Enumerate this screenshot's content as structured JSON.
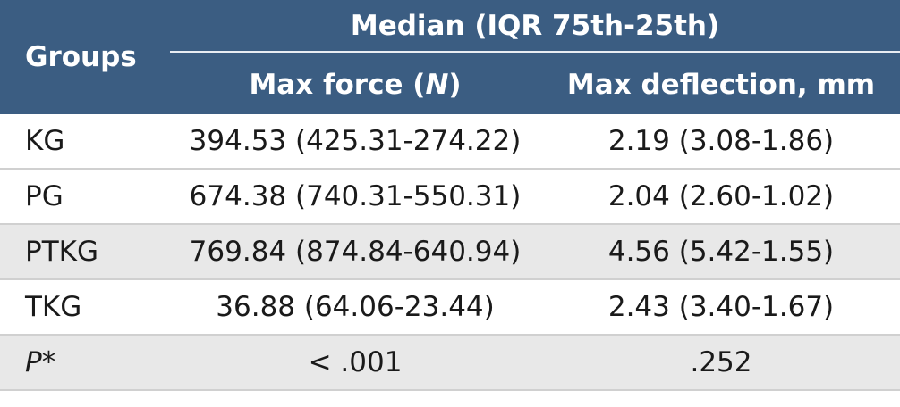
{
  "header": {
    "groups_label": "Groups",
    "median_label": "Median (IQR 75th-25th)",
    "max_force_prefix": "Max force (",
    "max_force_unit": "N",
    "max_force_suffix": ")",
    "max_deflection_label": "Max deflection, mm"
  },
  "rows": [
    {
      "group": "KG",
      "max_force": "394.53 (425.31-274.22)",
      "max_deflection": "2.19 (3.08-1.86)"
    },
    {
      "group": "PG",
      "max_force": "674.38 (740.31-550.31)",
      "max_deflection": "2.04 (2.60-1.02)"
    },
    {
      "group": "PTKG",
      "max_force": "769.84 (874.84-640.94)",
      "max_deflection": "4.56 (5.42-1.55)"
    },
    {
      "group": "TKG",
      "max_force": "36.88 (64.06-23.44)",
      "max_deflection": "2.43 (3.40-1.67)"
    }
  ],
  "p_row": {
    "label": "P*",
    "max_force": "< .001",
    "max_deflection": ".252"
  },
  "colors": {
    "header_bg": "#3b5d82",
    "shaded_row_bg": "#e8e8e8"
  }
}
